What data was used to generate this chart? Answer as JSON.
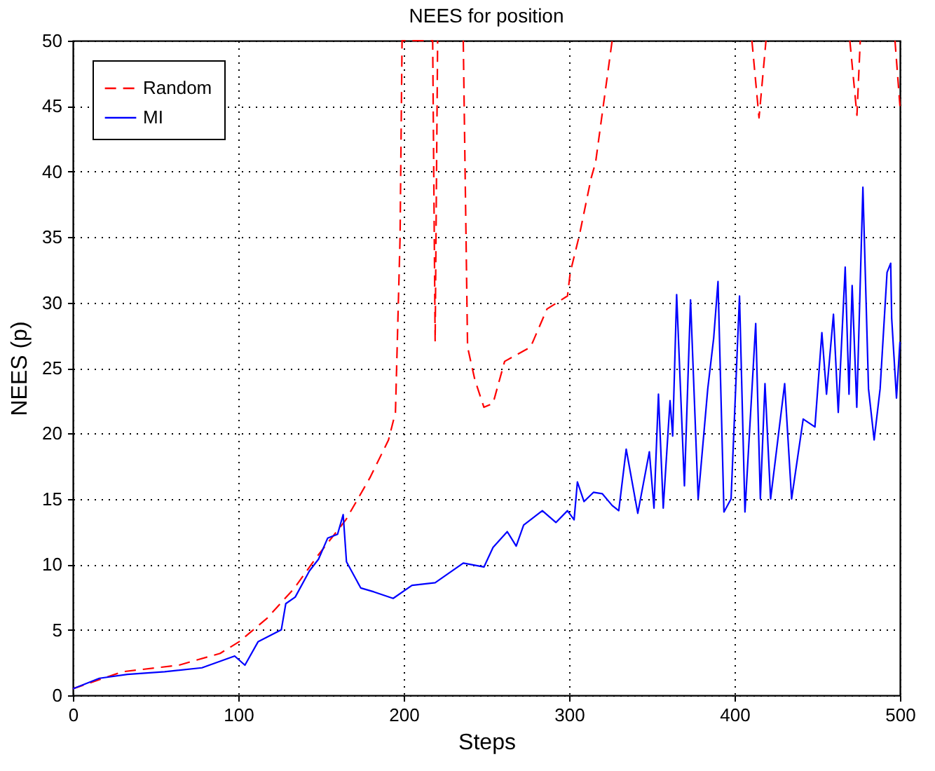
{
  "chart_data": {
    "type": "line",
    "title": "NEES for position",
    "xlabel": "Steps",
    "ylabel": "NEES (p)",
    "xlim": [
      0,
      500
    ],
    "xticks": [
      0,
      100,
      200,
      300,
      400,
      500
    ],
    "ylim": [
      0,
      50
    ],
    "yticks": [
      0,
      5,
      10,
      15,
      20,
      25,
      30,
      35,
      40,
      45,
      50
    ],
    "grid": true,
    "legend": "top left",
    "series": [
      {
        "name": "Random",
        "color": "#ff0000",
        "line_style": "dashed",
        "x": [
          0,
          30,
          64,
          89,
          100.6,
          117.5,
          134,
          147,
          165,
          179.5,
          190.8,
          195,
          197.8,
          199,
          217.5,
          219,
          220.5,
          228,
          236,
          238.6,
          243,
          248.5,
          254,
          261,
          276.7,
          286.6,
          299,
          300.7,
          306.3,
          313.3,
          316,
          326,
          360,
          410.5,
          414.8,
          419,
          440,
          469.7,
          474,
          476,
          490,
          497,
          500
        ],
        "values": [
          0.5,
          1.8,
          2.3,
          3.2,
          4.1,
          5.9,
          8.2,
          10.5,
          13.4,
          16.6,
          19.5,
          21.6,
          35,
          50,
          50,
          27,
          50,
          null,
          50,
          26.6,
          24.1,
          22.0,
          22.3,
          25.5,
          26.6,
          29.5,
          30.5,
          32.3,
          35.2,
          39.5,
          40.7,
          50,
          null,
          50,
          44.1,
          50,
          null,
          50,
          44.3,
          50,
          null,
          50,
          45
        ]
      },
      {
        "name": "MI",
        "color": "#0000ff",
        "line_style": "solid",
        "x": [
          0,
          16,
          33,
          55.5,
          78,
          97.8,
          104,
          112,
          126,
          128.7,
          134.4,
          143,
          148.5,
          154,
          160,
          163.4,
          165.4,
          174,
          182,
          193.6,
          205,
          219,
          236,
          248.5,
          254,
          262.6,
          268,
          272.5,
          283.8,
          292,
          299,
          303,
          305,
          309,
          314.7,
          320,
          326,
          330,
          334.5,
          341.5,
          348.5,
          351.3,
          354,
          356.9,
          361,
          362.6,
          365,
          369.7,
          373.4,
          378,
          383.8,
          387.4,
          390,
          393.6,
          397.9,
          403,
          406.3,
          412.8,
          415.6,
          418.4,
          421.8,
          430.3,
          434.5,
          441.5,
          448.6,
          452.8,
          455.6,
          459.8,
          462.7,
          466.9,
          469.2,
          471.1,
          473.9,
          477.6,
          481,
          484.4,
          488,
          492.2,
          494.4,
          495,
          497.9,
          500
        ],
        "values": [
          0.5,
          1.3,
          1.6,
          1.8,
          2.1,
          3.0,
          2.3,
          4.1,
          5.0,
          7.0,
          7.5,
          9.5,
          10.4,
          12.0,
          12.3,
          13.8,
          10.2,
          8.2,
          7.9,
          7.4,
          8.4,
          8.6,
          10.1,
          9.8,
          11.3,
          12.5,
          11.4,
          13.0,
          14.1,
          13.2,
          14.1,
          13.4,
          16.3,
          14.8,
          15.5,
          15.4,
          14.5,
          14.1,
          18.8,
          13.9,
          18.6,
          14.3,
          23.0,
          14.3,
          22.5,
          19.8,
          30.6,
          16.0,
          30.2,
          15.0,
          23.4,
          27.3,
          31.6,
          14.0,
          15.0,
          30.5,
          14.0,
          28.4,
          15.0,
          23.8,
          15.0,
          23.8,
          15.0,
          21.1,
          20.5,
          27.7,
          23.0,
          29.1,
          21.6,
          32.7,
          23.0,
          31.3,
          22.0,
          38.8,
          23.4,
          19.5,
          23.4,
          32.3,
          33.0,
          28.8,
          22.7,
          27
        ]
      }
    ]
  }
}
